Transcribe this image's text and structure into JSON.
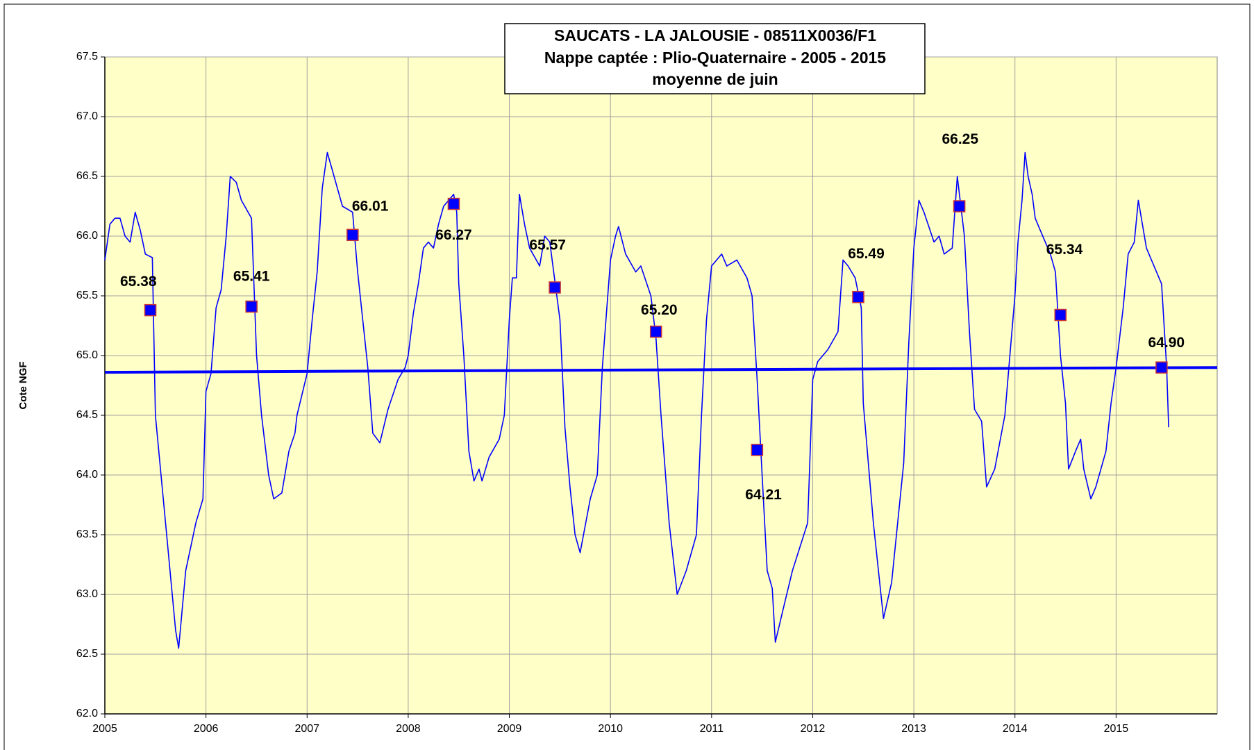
{
  "chart_data": {
    "type": "line",
    "title": [
      "SAUCATS - LA JALOUSIE - 08511X0036/F1",
      "Nappe captée : Plio-Quaternaire  -    2005 - 2015",
      "moyenne  de juin"
    ],
    "ylabel": "Cote NGF",
    "xlim": [
      2005,
      2016
    ],
    "xticks": [
      2005,
      2006,
      2007,
      2008,
      2009,
      2010,
      2011,
      2012,
      2013,
      2014,
      2015
    ],
    "ylim": [
      62,
      67.5
    ],
    "yticks": [
      {
        "value": 62,
        "label": "62.0"
      },
      62.5,
      {
        "value": 63,
        "label": "63.0"
      },
      63.5,
      {
        "value": 64,
        "label": "64.0"
      },
      64.5,
      {
        "value": 65,
        "label": "65.0"
      },
      65.5,
      {
        "value": 66,
        "label": "66.0"
      },
      66.5,
      {
        "value": 67,
        "label": "67.0"
      },
      67.5
    ],
    "grid": true,
    "series": [
      {
        "color": "#0000ff",
        "x": [
          2005.0,
          2005.05,
          2005.1,
          2005.15,
          2005.2,
          2005.25,
          2005.3,
          2005.35,
          2005.4,
          2005.47,
          2005.5,
          2005.6,
          2005.7,
          2005.73,
          2005.8,
          2005.9,
          2005.97,
          2006.0,
          2006.05,
          2006.1,
          2006.15,
          2006.2,
          2006.24,
          2006.3,
          2006.35,
          2006.45,
          2006.5,
          2006.55,
          2006.62,
          2006.67,
          2006.75,
          2006.82,
          2006.88,
          2006.9,
          2007.0,
          2007.05,
          2007.1,
          2007.15,
          2007.2,
          2007.25,
          2007.35,
          2007.45,
          2007.5,
          2007.6,
          2007.65,
          2007.72,
          2007.8,
          2007.9,
          2007.97,
          2008.0,
          2008.05,
          2008.1,
          2008.15,
          2008.2,
          2008.25,
          2008.3,
          2008.35,
          2008.45,
          2008.48,
          2008.5,
          2008.55,
          2008.6,
          2008.65,
          2008.7,
          2008.73,
          2008.8,
          2008.9,
          2008.95,
          2009.0,
          2009.03,
          2009.07,
          2009.1,
          2009.15,
          2009.2,
          2009.3,
          2009.35,
          2009.4,
          2009.5,
          2009.55,
          2009.6,
          2009.65,
          2009.7,
          2009.8,
          2009.87,
          2009.92,
          2010.0,
          2010.05,
          2010.08,
          2010.15,
          2010.25,
          2010.3,
          2010.4,
          2010.45,
          2010.5,
          2010.58,
          2010.66,
          2010.75,
          2010.85,
          2010.9,
          2010.95,
          2011.0,
          2011.1,
          2011.15,
          2011.25,
          2011.35,
          2011.4,
          2011.45,
          2011.5,
          2011.55,
          2011.6,
          2011.63,
          2011.7,
          2011.8,
          2011.95,
          2012.0,
          2012.05,
          2012.15,
          2012.25,
          2012.3,
          2012.35,
          2012.42,
          2012.48,
          2012.5,
          2012.6,
          2012.65,
          2012.7,
          2012.78,
          2012.9,
          2012.95,
          2013.0,
          2013.05,
          2013.1,
          2013.2,
          2013.25,
          2013.3,
          2013.38,
          2013.43,
          2013.5,
          2013.55,
          2013.6,
          2013.67,
          2013.72,
          2013.8,
          2013.9,
          2013.95,
          2014.0,
          2014.03,
          2014.07,
          2014.1,
          2014.13,
          2014.17,
          2014.2,
          2014.25,
          2014.3,
          2014.35,
          2014.4,
          2014.45,
          2014.5,
          2014.53,
          2014.6,
          2014.65,
          2014.68,
          2014.75,
          2014.8,
          2014.9,
          2014.95,
          2015.0,
          2015.07,
          2015.12,
          2015.18,
          2015.22,
          2015.3,
          2015.35,
          2015.45,
          2015.5,
          2015.52
        ],
        "values": [
          65.8,
          66.1,
          66.15,
          66.15,
          66.0,
          65.95,
          66.2,
          66.05,
          65.85,
          65.82,
          64.5,
          63.6,
          62.7,
          62.55,
          63.2,
          63.6,
          63.8,
          64.7,
          64.85,
          65.4,
          65.55,
          66.0,
          66.5,
          66.45,
          66.3,
          66.15,
          65.0,
          64.5,
          64.0,
          63.8,
          63.85,
          64.2,
          64.35,
          64.5,
          64.85,
          65.3,
          65.7,
          66.4,
          66.7,
          66.55,
          66.25,
          66.2,
          65.7,
          64.9,
          64.35,
          64.27,
          64.55,
          64.8,
          64.9,
          65.0,
          65.35,
          65.6,
          65.9,
          65.95,
          65.9,
          66.1,
          66.25,
          66.35,
          66.2,
          65.6,
          65.0,
          64.2,
          63.95,
          64.05,
          63.95,
          64.15,
          64.3,
          64.5,
          65.3,
          65.65,
          65.65,
          66.35,
          66.1,
          65.9,
          65.75,
          66.0,
          65.95,
          65.3,
          64.4,
          63.9,
          63.5,
          63.35,
          63.8,
          64.0,
          64.9,
          65.8,
          66.0,
          66.08,
          65.85,
          65.7,
          65.75,
          65.5,
          65.15,
          64.5,
          63.6,
          63.0,
          63.2,
          63.5,
          64.5,
          65.3,
          65.75,
          65.85,
          65.75,
          65.8,
          65.65,
          65.5,
          64.8,
          64.0,
          63.2,
          63.05,
          62.6,
          62.85,
          63.2,
          63.6,
          64.8,
          64.95,
          65.05,
          65.2,
          65.8,
          65.75,
          65.65,
          65.4,
          64.6,
          63.6,
          63.2,
          62.8,
          63.1,
          64.1,
          65.1,
          65.9,
          66.3,
          66.2,
          65.95,
          66.0,
          65.85,
          65.9,
          66.5,
          66.0,
          65.2,
          64.55,
          64.45,
          63.9,
          64.05,
          64.5,
          65.0,
          65.5,
          65.95,
          66.3,
          66.7,
          66.5,
          66.35,
          66.15,
          66.05,
          65.95,
          65.85,
          65.7,
          65.0,
          64.6,
          64.05,
          64.2,
          64.3,
          64.05,
          63.8,
          63.9,
          64.2,
          64.6,
          64.9,
          65.4,
          65.85,
          65.95,
          66.3,
          65.9,
          65.8,
          65.6,
          64.9,
          64.4
        ]
      },
      {
        "color": "#0000ff",
        "marker": "square",
        "marker_edge": "#cc3333",
        "x": [
          2005.45,
          2006.45,
          2007.45,
          2008.45,
          2009.45,
          2010.45,
          2011.45,
          2012.45,
          2013.45,
          2014.45,
          2015.45
        ],
        "values": [
          65.38,
          65.41,
          66.01,
          66.27,
          65.57,
          65.2,
          64.21,
          65.49,
          66.25,
          65.34,
          64.9
        ],
        "value_labels": [
          "65.38",
          "65.41",
          "66.01",
          "66.27",
          "65.57",
          "65.20",
          "64.21",
          "65.49",
          "66.25",
          "65.34",
          "64.90"
        ]
      },
      {
        "color": "#0000ff",
        "x": [
          2005,
          2016
        ],
        "values": [
          64.86,
          64.9
        ]
      }
    ]
  }
}
